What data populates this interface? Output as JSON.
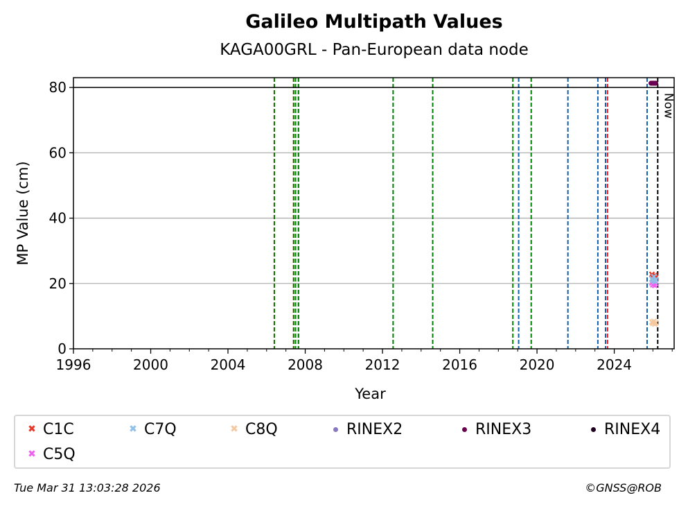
{
  "header": {
    "title": "Galileo Multipath Values",
    "subtitle": "KAGA00GRL - Pan-European data node"
  },
  "footer": {
    "timestamp": "Tue Mar 31 13:03:28 2026",
    "credit": "©GNSS@ROB"
  },
  "chart_data": {
    "type": "scatter",
    "title": "Galileo Multipath Values",
    "subtitle": "KAGA00GRL - Pan-European data node",
    "xlabel": "Year",
    "ylabel": "MP Value (cm)",
    "xlim": [
      1996,
      2027.1
    ],
    "ylim": [
      0,
      83
    ],
    "x_ticks": [
      1996,
      2000,
      2004,
      2008,
      2012,
      2016,
      2020,
      2024
    ],
    "y_ticks": [
      0,
      20,
      40,
      60,
      80
    ],
    "grid": "horizontal",
    "threshold_line": 80,
    "now_label": "Now",
    "now_year": 2026.25,
    "event_lines": [
      {
        "year": 2006.4,
        "color": "#e31a1c"
      },
      {
        "year": 2006.4,
        "color": "#008000"
      },
      {
        "year": 2007.4,
        "color": "#e31a1c"
      },
      {
        "year": 2007.4,
        "color": "#008000"
      },
      {
        "year": 2007.5,
        "color": "#008000"
      },
      {
        "year": 2007.65,
        "color": "#e31a1c"
      },
      {
        "year": 2007.65,
        "color": "#008000"
      },
      {
        "year": 2012.55,
        "color": "#008000"
      },
      {
        "year": 2014.6,
        "color": "#008000"
      },
      {
        "year": 2018.75,
        "color": "#008000"
      },
      {
        "year": 2019.05,
        "color": "#1060b0"
      },
      {
        "year": 2019.7,
        "color": "#008000"
      },
      {
        "year": 2021.6,
        "color": "#1060b0"
      },
      {
        "year": 2023.15,
        "color": "#1060b0"
      },
      {
        "year": 2023.55,
        "color": "#1060b0"
      },
      {
        "year": 2023.65,
        "color": "#e31a1c"
      },
      {
        "year": 2025.7,
        "color": "#1060b0"
      },
      {
        "year": 2026.25,
        "color": "#000000"
      }
    ],
    "series": [
      {
        "name": "C1C",
        "marker": "x",
        "color": "#e8382a",
        "points": [
          [
            2025.95,
            22.8
          ],
          [
            2026.0,
            22.2
          ],
          [
            2026.05,
            21.6
          ],
          [
            2026.1,
            22.5
          ],
          [
            2026.15,
            21.9
          ]
        ]
      },
      {
        "name": "C5Q",
        "marker": "x",
        "color": "#f060f0",
        "points": [
          [
            2025.95,
            20.2
          ],
          [
            2026.0,
            19.6
          ],
          [
            2026.05,
            20.8
          ],
          [
            2026.1,
            19.4
          ],
          [
            2026.15,
            20.0
          ]
        ]
      },
      {
        "name": "C7Q",
        "marker": "x",
        "color": "#90c0e8",
        "points": [
          [
            2025.95,
            21.4
          ],
          [
            2026.0,
            20.9
          ],
          [
            2026.05,
            22.1
          ],
          [
            2026.1,
            20.6
          ],
          [
            2026.15,
            21.2
          ]
        ]
      },
      {
        "name": "C8Q",
        "marker": "x",
        "color": "#f5c8a0",
        "points": [
          [
            2025.95,
            8.2
          ],
          [
            2026.0,
            7.8
          ],
          [
            2026.05,
            8.4
          ],
          [
            2026.1,
            7.6
          ],
          [
            2026.15,
            8.0
          ]
        ]
      },
      {
        "name": "RINEX2",
        "marker": "dot",
        "color": "#8878c0",
        "points": []
      },
      {
        "name": "RINEX3",
        "marker": "dot",
        "color": "#6a0050",
        "points": [
          [
            2025.9,
            81.3
          ],
          [
            2025.95,
            81.3
          ],
          [
            2026.0,
            81.3
          ],
          [
            2026.05,
            81.3
          ],
          [
            2026.1,
            81.3
          ],
          [
            2026.15,
            81.3
          ]
        ]
      },
      {
        "name": "RINEX4",
        "marker": "dot",
        "color": "#200020",
        "points": []
      }
    ]
  }
}
